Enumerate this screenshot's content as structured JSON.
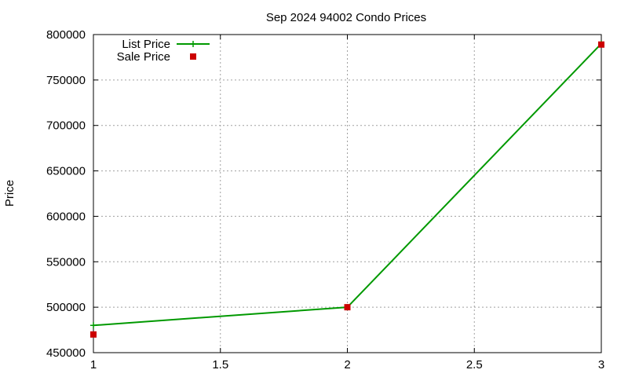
{
  "chart_data": {
    "type": "line",
    "title": "Sep 2024 94002 Condo Prices",
    "xlabel": "",
    "ylabel": "Price",
    "xlim": [
      1,
      3
    ],
    "ylim": [
      450000,
      800000
    ],
    "x_ticks": [
      1,
      1.5,
      2,
      2.5,
      3
    ],
    "x_tick_labels": [
      "1",
      "1.5",
      "2",
      "2.5",
      "3"
    ],
    "y_ticks": [
      450000,
      500000,
      550000,
      600000,
      650000,
      700000,
      750000,
      800000
    ],
    "y_tick_labels": [
      "450000",
      "500000",
      "550000",
      "600000",
      "650000",
      "700000",
      "750000",
      "800000"
    ],
    "grid": true,
    "legend_position": "top-left",
    "series": [
      {
        "name": "List Price",
        "style": "line-with-plus-markers",
        "color": "#009900",
        "x": [
          1,
          2,
          3
        ],
        "y": [
          480000,
          500000,
          790000
        ]
      },
      {
        "name": "Sale Price",
        "style": "square-markers",
        "color": "#cc0000",
        "x": [
          1,
          2,
          3
        ],
        "y": [
          470000,
          500000,
          789000
        ]
      }
    ]
  }
}
